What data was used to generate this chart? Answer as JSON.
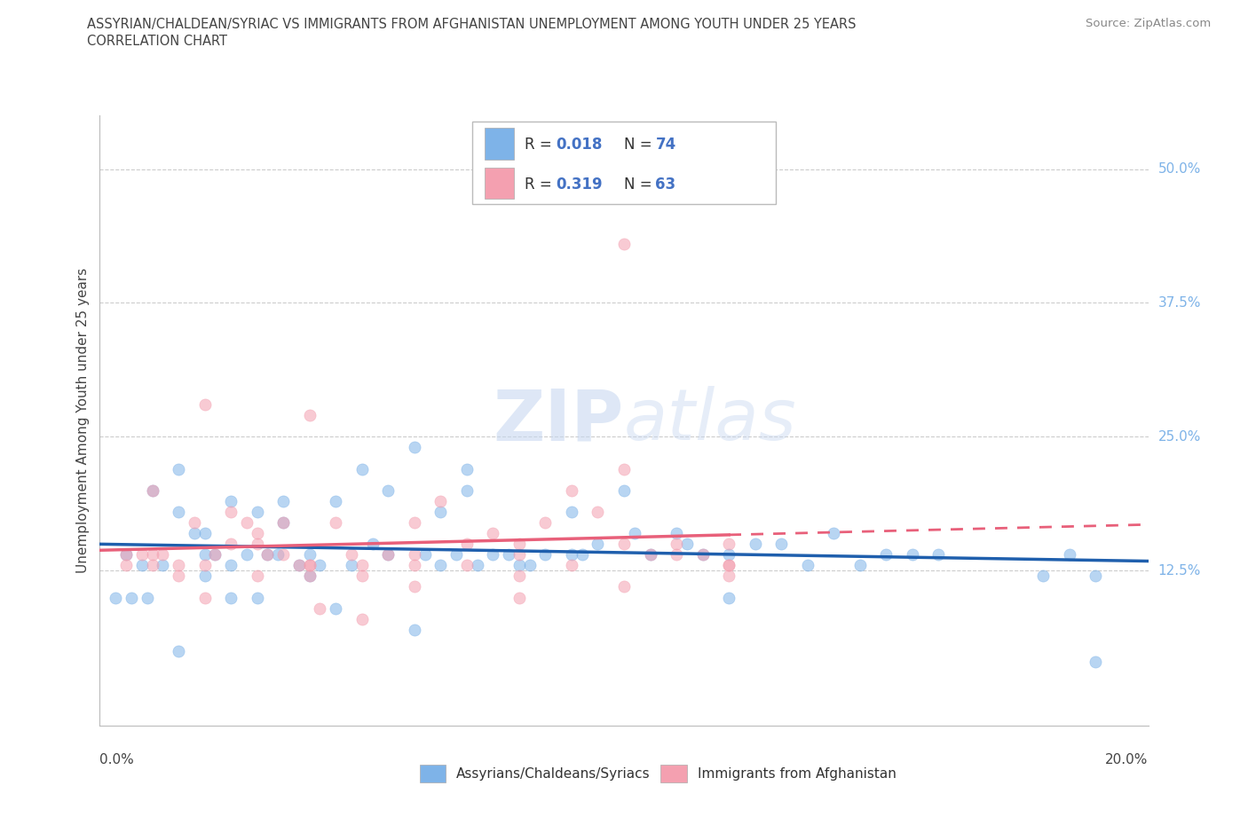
{
  "title_line1": "ASSYRIAN/CHALDEAN/SYRIAC VS IMMIGRANTS FROM AFGHANISTAN UNEMPLOYMENT AMONG YOUTH UNDER 25 YEARS",
  "title_line2": "CORRELATION CHART",
  "source": "Source: ZipAtlas.com",
  "ylabel": "Unemployment Among Youth under 25 years",
  "legend_label_blue": "Assyrians/Chaldeans/Syriacs",
  "legend_label_pink": "Immigrants from Afghanistan",
  "xlim": [
    0.0,
    0.2
  ],
  "ylim": [
    -0.02,
    0.55
  ],
  "ytick_values": [
    0.125,
    0.25,
    0.375,
    0.5
  ],
  "ytick_labels": [
    "12.5%",
    "25.0%",
    "37.5%",
    "50.0%"
  ],
  "blue_R": 0.018,
  "blue_N": 74,
  "pink_R": 0.319,
  "pink_N": 63,
  "blue_scatter_color": "#7EB3E8",
  "pink_scatter_color": "#F4A0B0",
  "blue_line_color": "#1F5FAD",
  "pink_line_color": "#E8607A",
  "legend_R_color": "#4472C4",
  "watermark_zip": "ZIP",
  "watermark_atlas": "atlas",
  "blue_x": [
    0.005,
    0.008,
    0.01,
    0.012,
    0.015,
    0.015,
    0.018,
    0.02,
    0.02,
    0.02,
    0.022,
    0.025,
    0.025,
    0.025,
    0.028,
    0.03,
    0.03,
    0.032,
    0.034,
    0.035,
    0.035,
    0.038,
    0.04,
    0.04,
    0.042,
    0.045,
    0.045,
    0.048,
    0.05,
    0.052,
    0.055,
    0.055,
    0.06,
    0.062,
    0.065,
    0.065,
    0.068,
    0.07,
    0.07,
    0.072,
    0.075,
    0.078,
    0.08,
    0.082,
    0.085,
    0.09,
    0.092,
    0.095,
    0.1,
    0.102,
    0.105,
    0.11,
    0.112,
    0.115,
    0.12,
    0.125,
    0.13,
    0.135,
    0.14,
    0.145,
    0.15,
    0.155,
    0.16,
    0.18,
    0.185,
    0.19,
    0.003,
    0.006,
    0.009,
    0.015,
    0.06,
    0.09,
    0.12,
    0.19
  ],
  "blue_y": [
    0.14,
    0.13,
    0.2,
    0.13,
    0.22,
    0.18,
    0.16,
    0.14,
    0.16,
    0.12,
    0.14,
    0.13,
    0.1,
    0.19,
    0.14,
    0.1,
    0.18,
    0.14,
    0.14,
    0.19,
    0.17,
    0.13,
    0.12,
    0.14,
    0.13,
    0.09,
    0.19,
    0.13,
    0.22,
    0.15,
    0.2,
    0.14,
    0.24,
    0.14,
    0.18,
    0.13,
    0.14,
    0.22,
    0.2,
    0.13,
    0.14,
    0.14,
    0.13,
    0.13,
    0.14,
    0.14,
    0.14,
    0.15,
    0.2,
    0.16,
    0.14,
    0.16,
    0.15,
    0.14,
    0.14,
    0.15,
    0.15,
    0.13,
    0.16,
    0.13,
    0.14,
    0.14,
    0.14,
    0.12,
    0.14,
    0.12,
    0.1,
    0.1,
    0.1,
    0.05,
    0.07,
    0.18,
    0.1,
    0.04
  ],
  "pink_x": [
    0.005,
    0.008,
    0.01,
    0.012,
    0.015,
    0.018,
    0.02,
    0.022,
    0.025,
    0.028,
    0.03,
    0.032,
    0.035,
    0.038,
    0.04,
    0.042,
    0.045,
    0.048,
    0.05,
    0.055,
    0.06,
    0.065,
    0.07,
    0.075,
    0.08,
    0.085,
    0.09,
    0.095,
    0.1,
    0.105,
    0.11,
    0.115,
    0.12,
    0.01,
    0.015,
    0.02,
    0.025,
    0.03,
    0.035,
    0.04,
    0.05,
    0.06,
    0.07,
    0.08,
    0.09,
    0.1,
    0.11,
    0.12,
    0.005,
    0.01,
    0.02,
    0.03,
    0.04,
    0.05,
    0.06,
    0.08,
    0.1,
    0.12,
    0.04,
    0.06,
    0.08,
    0.1,
    0.12
  ],
  "pink_y": [
    0.13,
    0.14,
    0.14,
    0.14,
    0.13,
    0.17,
    0.13,
    0.14,
    0.15,
    0.17,
    0.15,
    0.14,
    0.17,
    0.13,
    0.27,
    0.09,
    0.17,
    0.14,
    0.13,
    0.14,
    0.14,
    0.19,
    0.15,
    0.16,
    0.14,
    0.17,
    0.13,
    0.18,
    0.15,
    0.14,
    0.15,
    0.14,
    0.13,
    0.13,
    0.12,
    0.28,
    0.18,
    0.12,
    0.14,
    0.13,
    0.08,
    0.17,
    0.13,
    0.15,
    0.2,
    0.22,
    0.14,
    0.15,
    0.14,
    0.2,
    0.1,
    0.16,
    0.12,
    0.12,
    0.11,
    0.1,
    0.11,
    0.12,
    0.13,
    0.13,
    0.12,
    0.43,
    0.13
  ]
}
